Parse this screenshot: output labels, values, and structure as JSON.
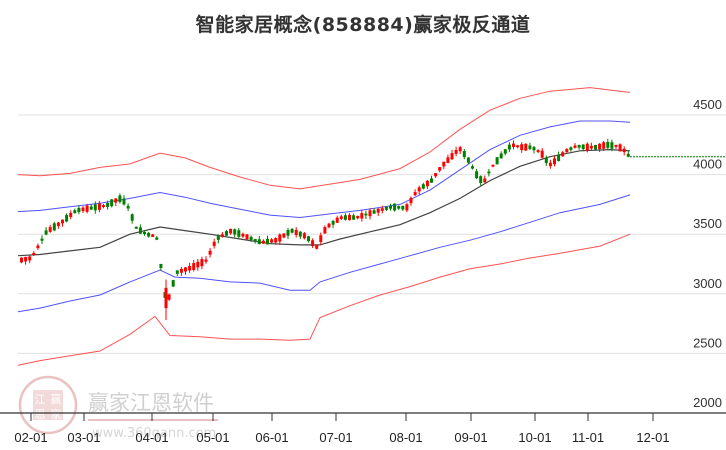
{
  "title": "智能家居概念(858884)赢家极反通道",
  "watermark": {
    "brand": "赢家江恩软件",
    "url": "www.360gann.com",
    "seal": [
      "江",
      "赢",
      "恩",
      "家"
    ]
  },
  "colors": {
    "up": "#ff0000",
    "down": "#008000",
    "outer_band": "#ff3333",
    "inner_band": "#3333ff",
    "mid_line": "#222222",
    "last_price_line": "#008000",
    "grid": "#e0e0e0"
  },
  "chart_data": {
    "type": "candlestick",
    "title": "智能家居概念(858884)赢家极反通道",
    "xlabel": "",
    "ylabel": "",
    "ylim": [
      2000,
      4800
    ],
    "yticks": [
      2000,
      2500,
      3000,
      3500,
      4000,
      4500
    ],
    "xticks": [
      "02-01",
      "03-01",
      "04-01",
      "05-01",
      "06-01",
      "07-01",
      "08-01",
      "09-01",
      "10-01",
      "11-01",
      "12-01"
    ],
    "grid": true,
    "last_price": 4150,
    "series": [
      {
        "name": "outer_upper_band",
        "color": "#ff3333",
        "points": [
          [
            18,
            4000
          ],
          [
            40,
            3990
          ],
          [
            70,
            4010
          ],
          [
            100,
            4060
          ],
          [
            130,
            4090
          ],
          [
            160,
            4180
          ],
          [
            185,
            4140
          ],
          [
            210,
            4060
          ],
          [
            240,
            3980
          ],
          [
            270,
            3910
          ],
          [
            300,
            3880
          ],
          [
            330,
            3920
          ],
          [
            360,
            3960
          ],
          [
            400,
            4050
          ],
          [
            430,
            4190
          ],
          [
            460,
            4380
          ],
          [
            490,
            4540
          ],
          [
            520,
            4640
          ],
          [
            550,
            4700
          ],
          [
            590,
            4730
          ],
          [
            620,
            4700
          ],
          [
            630,
            4690
          ]
        ]
      },
      {
        "name": "inner_upper_band",
        "color": "#3333ff",
        "points": [
          [
            18,
            3690
          ],
          [
            40,
            3700
          ],
          [
            70,
            3730
          ],
          [
            100,
            3760
          ],
          [
            130,
            3800
          ],
          [
            160,
            3850
          ],
          [
            185,
            3810
          ],
          [
            210,
            3760
          ],
          [
            240,
            3710
          ],
          [
            270,
            3660
          ],
          [
            300,
            3640
          ],
          [
            330,
            3670
          ],
          [
            360,
            3700
          ],
          [
            400,
            3750
          ],
          [
            430,
            3870
          ],
          [
            460,
            4040
          ],
          [
            490,
            4210
          ],
          [
            520,
            4330
          ],
          [
            550,
            4400
          ],
          [
            580,
            4450
          ],
          [
            610,
            4450
          ],
          [
            630,
            4440
          ]
        ]
      },
      {
        "name": "mid_line",
        "color": "#222222",
        "points": [
          [
            18,
            3320
          ],
          [
            40,
            3330
          ],
          [
            70,
            3360
          ],
          [
            100,
            3390
          ],
          [
            130,
            3500
          ],
          [
            160,
            3560
          ],
          [
            185,
            3530
          ],
          [
            210,
            3500
          ],
          [
            240,
            3460
          ],
          [
            270,
            3420
          ],
          [
            300,
            3410
          ],
          [
            320,
            3410
          ],
          [
            340,
            3460
          ],
          [
            370,
            3520
          ],
          [
            400,
            3580
          ],
          [
            430,
            3680
          ],
          [
            460,
            3800
          ],
          [
            490,
            3950
          ],
          [
            520,
            4070
          ],
          [
            550,
            4150
          ],
          [
            580,
            4200
          ],
          [
            610,
            4210
          ],
          [
            630,
            4200
          ]
        ]
      },
      {
        "name": "inner_lower_band",
        "color": "#3333ff",
        "points": [
          [
            18,
            2850
          ],
          [
            40,
            2880
          ],
          [
            70,
            2940
          ],
          [
            100,
            2990
          ],
          [
            130,
            3100
          ],
          [
            160,
            3200
          ],
          [
            175,
            3140
          ],
          [
            200,
            3130
          ],
          [
            230,
            3100
          ],
          [
            260,
            3090
          ],
          [
            290,
            3030
          ],
          [
            310,
            3030
          ],
          [
            320,
            3100
          ],
          [
            350,
            3180
          ],
          [
            380,
            3250
          ],
          [
            410,
            3320
          ],
          [
            440,
            3390
          ],
          [
            470,
            3450
          ],
          [
            500,
            3520
          ],
          [
            530,
            3600
          ],
          [
            560,
            3680
          ],
          [
            600,
            3750
          ],
          [
            630,
            3830
          ]
        ]
      },
      {
        "name": "outer_lower_band",
        "color": "#ff3333",
        "points": [
          [
            18,
            2400
          ],
          [
            40,
            2440
          ],
          [
            70,
            2480
          ],
          [
            100,
            2520
          ],
          [
            130,
            2660
          ],
          [
            155,
            2810
          ],
          [
            170,
            2650
          ],
          [
            200,
            2640
          ],
          [
            230,
            2620
          ],
          [
            260,
            2620
          ],
          [
            290,
            2610
          ],
          [
            310,
            2620
          ],
          [
            320,
            2800
          ],
          [
            350,
            2900
          ],
          [
            380,
            2990
          ],
          [
            410,
            3060
          ],
          [
            440,
            3140
          ],
          [
            470,
            3210
          ],
          [
            500,
            3250
          ],
          [
            530,
            3300
          ],
          [
            560,
            3340
          ],
          [
            600,
            3400
          ],
          [
            630,
            3500
          ]
        ]
      }
    ]
  }
}
